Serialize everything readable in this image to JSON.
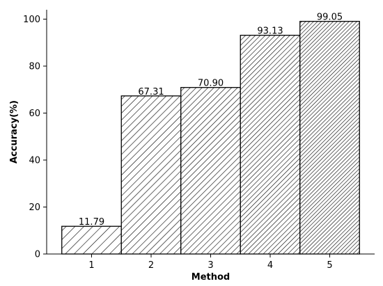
{
  "chart_data": {
    "type": "bar",
    "title": "",
    "xlabel": "Method",
    "ylabel": "Accuracy(%)",
    "categories": [
      "1",
      "2",
      "3",
      "4",
      "5"
    ],
    "values": [
      11.79,
      67.31,
      70.9,
      93.13,
      99.05
    ],
    "value_labels": [
      "11.79",
      "67.31",
      "70.90",
      "93.13",
      "99.05"
    ],
    "ylim": [
      0,
      104
    ],
    "yticks": [
      0,
      20,
      40,
      60,
      80,
      100
    ],
    "grid": false,
    "legend": "none",
    "bar_fill": "#ffffff",
    "bar_edge": "#000000",
    "hatch_spacing": [
      9,
      7,
      6,
      5,
      4
    ]
  }
}
